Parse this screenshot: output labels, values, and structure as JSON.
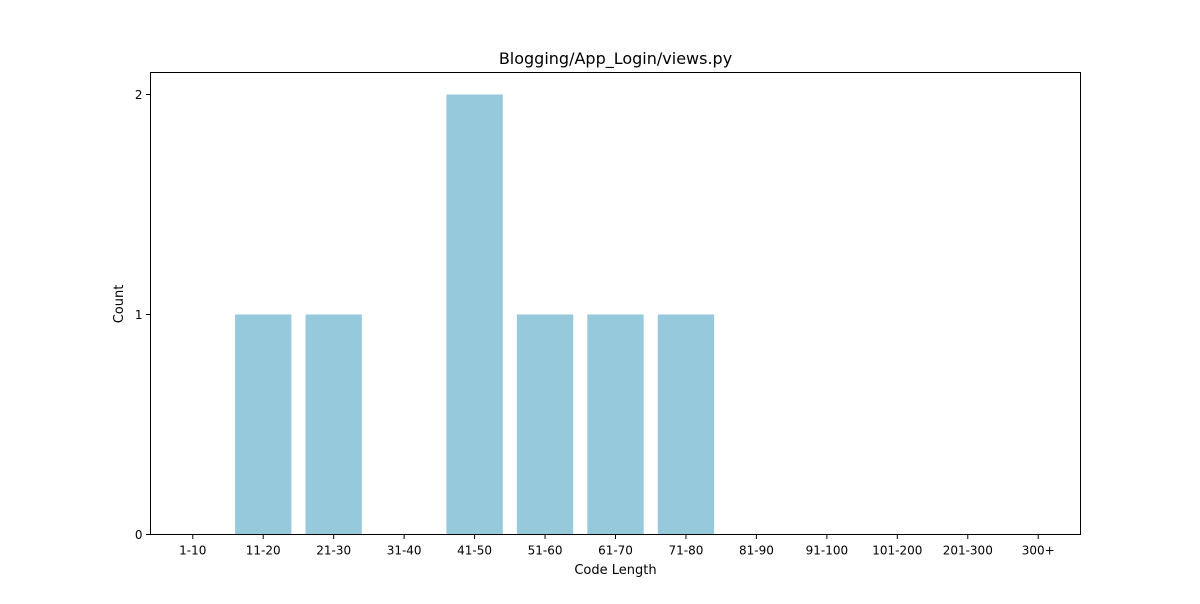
{
  "chart_data": {
    "type": "bar",
    "title": "Blogging/App_Login/views.py",
    "xlabel": "Code Length",
    "ylabel": "Count",
    "categories": [
      "1-10",
      "11-20",
      "21-30",
      "31-40",
      "41-50",
      "51-60",
      "61-70",
      "71-80",
      "81-90",
      "91-100",
      "101-200",
      "201-300",
      "300+"
    ],
    "values": [
      0,
      1,
      1,
      0,
      2,
      1,
      1,
      1,
      0,
      0,
      0,
      0,
      0
    ],
    "ylim": [
      0,
      2.1
    ],
    "yticks": [
      0,
      1,
      2
    ],
    "bar_color": "#96c9dc",
    "grid": false,
    "legend": "none"
  }
}
